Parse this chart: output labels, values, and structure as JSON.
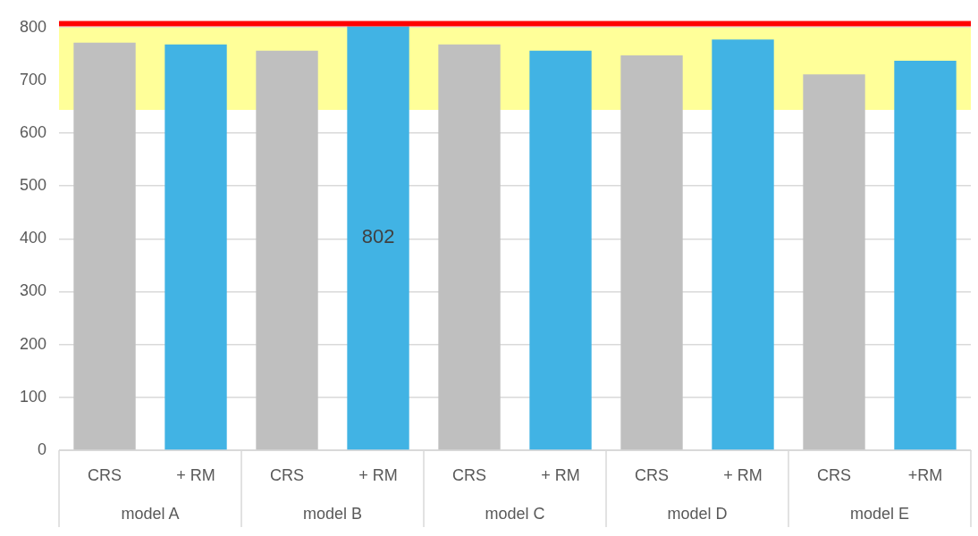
{
  "chart_data": {
    "type": "bar",
    "categories": [
      "CRS",
      "+ RM",
      "CRS",
      "+ RM",
      "CRS",
      "+ RM",
      "CRS",
      "+ RM",
      "CRS",
      "+RM"
    ],
    "values": [
      771,
      768,
      756,
      802,
      768,
      756,
      747,
      777,
      711,
      737
    ],
    "colors": [
      "#bfbfbf",
      "#41b3e4",
      "#bfbfbf",
      "#41b3e4",
      "#bfbfbf",
      "#41b3e4",
      "#bfbfbf",
      "#41b3e4",
      "#bfbfbf",
      "#41b3e4"
    ],
    "value_labels": [
      null,
      null,
      null,
      "802",
      null,
      null,
      null,
      null,
      null,
      null
    ],
    "ylim": [
      0,
      810
    ],
    "yticks": [
      0,
      100,
      200,
      300,
      400,
      500,
      600,
      700,
      800
    ],
    "grid": "y",
    "legend": false,
    "bands": [
      {
        "axis": "y",
        "from": 644,
        "to": 800,
        "color": "#ffff99"
      }
    ],
    "ref_lines": [
      {
        "axis": "y",
        "value": 807,
        "color": "#ff0000"
      }
    ],
    "annotations": [
      "model A",
      "model B",
      "model C",
      "model D",
      "model E"
    ]
  }
}
